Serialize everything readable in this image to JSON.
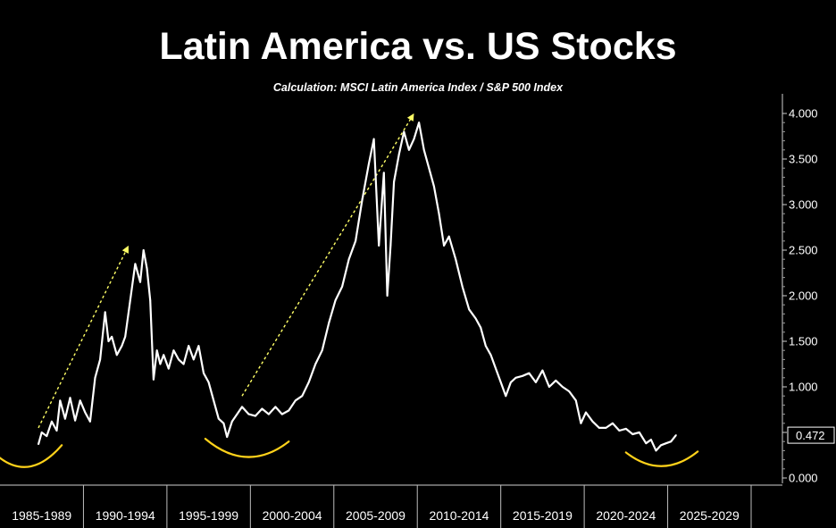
{
  "chart_data": {
    "type": "line",
    "title": "Latin America vs. US Stocks",
    "subtitle": "Calculation: MSCI Latin America Index / S&P 500 Index",
    "ylim": [
      0,
      4.1
    ],
    "xlim": [
      1985.5,
      2030.5
    ],
    "y_ticks": [
      "0.000",
      "0.500",
      "1.000",
      "1.500",
      "2.000",
      "2.500",
      "3.000",
      "3.500",
      "4.000"
    ],
    "x_categories": [
      "1985-1989",
      "1990-1994",
      "1995-1999",
      "2000-2004",
      "2005-2009",
      "2010-2014",
      "2015-2019",
      "2020-2024",
      "2025-2029"
    ],
    "last_value_label": "0.472",
    "series": [
      {
        "name": "MSCI Latin America / S&P 500",
        "color": "#ffffff",
        "x": [
          1987.8,
          1988.0,
          1988.3,
          1988.6,
          1988.9,
          1989.1,
          1989.4,
          1989.7,
          1990.0,
          1990.3,
          1990.6,
          1990.9,
          1991.2,
          1991.5,
          1991.8,
          1992.0,
          1992.2,
          1992.5,
          1992.8,
          1993.0,
          1993.3,
          1993.6,
          1993.9,
          1994.1,
          1994.3,
          1994.5,
          1994.7,
          1994.9,
          1995.1,
          1995.3,
          1995.6,
          1995.9,
          1996.2,
          1996.5,
          1996.8,
          1997.1,
          1997.4,
          1997.7,
          1998.0,
          1998.3,
          1998.6,
          1998.9,
          1999.1,
          1999.4,
          1999.7,
          2000.0,
          2000.4,
          2000.8,
          2001.2,
          2001.6,
          2002.0,
          2002.4,
          2002.8,
          2003.2,
          2003.6,
          2004.0,
          2004.4,
          2004.8,
          2005.2,
          2005.6,
          2006.0,
          2006.4,
          2006.8,
          2007.2,
          2007.6,
          2007.9,
          2008.2,
          2008.5,
          2008.7,
          2008.9,
          2009.1,
          2009.4,
          2009.7,
          2010.0,
          2010.3,
          2010.6,
          2010.9,
          2011.2,
          2011.5,
          2011.8,
          2012.1,
          2012.4,
          2012.8,
          2013.2,
          2013.6,
          2014.0,
          2014.3,
          2014.6,
          2014.9,
          2015.2,
          2015.5,
          2015.8,
          2016.1,
          2016.4,
          2016.8,
          2017.2,
          2017.6,
          2018.0,
          2018.4,
          2018.8,
          2019.2,
          2019.6,
          2020.0,
          2020.3,
          2020.6,
          2021.0,
          2021.4,
          2021.8,
          2022.2,
          2022.6,
          2023.0,
          2023.4,
          2023.8,
          2024.2,
          2024.5,
          2024.8,
          2025.1,
          2025.4,
          2025.7,
          2026.0
        ],
        "y": [
          0.37,
          0.5,
          0.46,
          0.62,
          0.52,
          0.85,
          0.65,
          0.88,
          0.63,
          0.85,
          0.72,
          0.62,
          1.1,
          1.3,
          1.82,
          1.5,
          1.55,
          1.35,
          1.45,
          1.55,
          1.95,
          2.35,
          2.15,
          2.5,
          2.3,
          1.95,
          1.08,
          1.4,
          1.25,
          1.35,
          1.2,
          1.4,
          1.3,
          1.25,
          1.45,
          1.3,
          1.45,
          1.15,
          1.05,
          0.85,
          0.65,
          0.6,
          0.45,
          0.62,
          0.7,
          0.78,
          0.7,
          0.68,
          0.76,
          0.7,
          0.78,
          0.7,
          0.74,
          0.85,
          0.9,
          1.05,
          1.25,
          1.4,
          1.7,
          1.95,
          2.1,
          2.4,
          2.6,
          3.05,
          3.45,
          3.72,
          2.55,
          3.35,
          2.0,
          2.55,
          3.25,
          3.55,
          3.8,
          3.6,
          3.72,
          3.9,
          3.6,
          3.4,
          3.2,
          2.9,
          2.55,
          2.65,
          2.4,
          2.1,
          1.85,
          1.75,
          1.65,
          1.45,
          1.35,
          1.2,
          1.05,
          0.9,
          1.05,
          1.1,
          1.12,
          1.15,
          1.05,
          1.18,
          1.0,
          1.07,
          1.0,
          0.95,
          0.85,
          0.6,
          0.72,
          0.62,
          0.55,
          0.55,
          0.6,
          0.52,
          0.54,
          0.48,
          0.5,
          0.38,
          0.42,
          0.3,
          0.36,
          0.38,
          0.4,
          0.47
        ]
      }
    ],
    "annotations": [
      {
        "type": "dotted-arrow",
        "color": "#ffff66",
        "from": [
          1987.8,
          0.55
        ],
        "to": [
          1993.2,
          2.55
        ]
      },
      {
        "type": "dotted-arrow",
        "color": "#ffff66",
        "from": [
          2000.0,
          0.9
        ],
        "to": [
          2010.3,
          4.0
        ]
      },
      {
        "type": "trough-arc",
        "color": "#ffd21a",
        "from": [
          1984.7,
          0.36
        ],
        "to": [
          1989.2,
          0.36
        ],
        "bottom": 0.12
      },
      {
        "type": "trough-arc",
        "color": "#ffd21a",
        "from": [
          1997.8,
          0.43
        ],
        "to": [
          2002.8,
          0.4
        ],
        "bottom": 0.23
      },
      {
        "type": "trough-arc",
        "color": "#ffd21a",
        "from": [
          2023.0,
          0.28
        ],
        "to": [
          2027.3,
          0.29
        ],
        "bottom": 0.13
      }
    ]
  }
}
